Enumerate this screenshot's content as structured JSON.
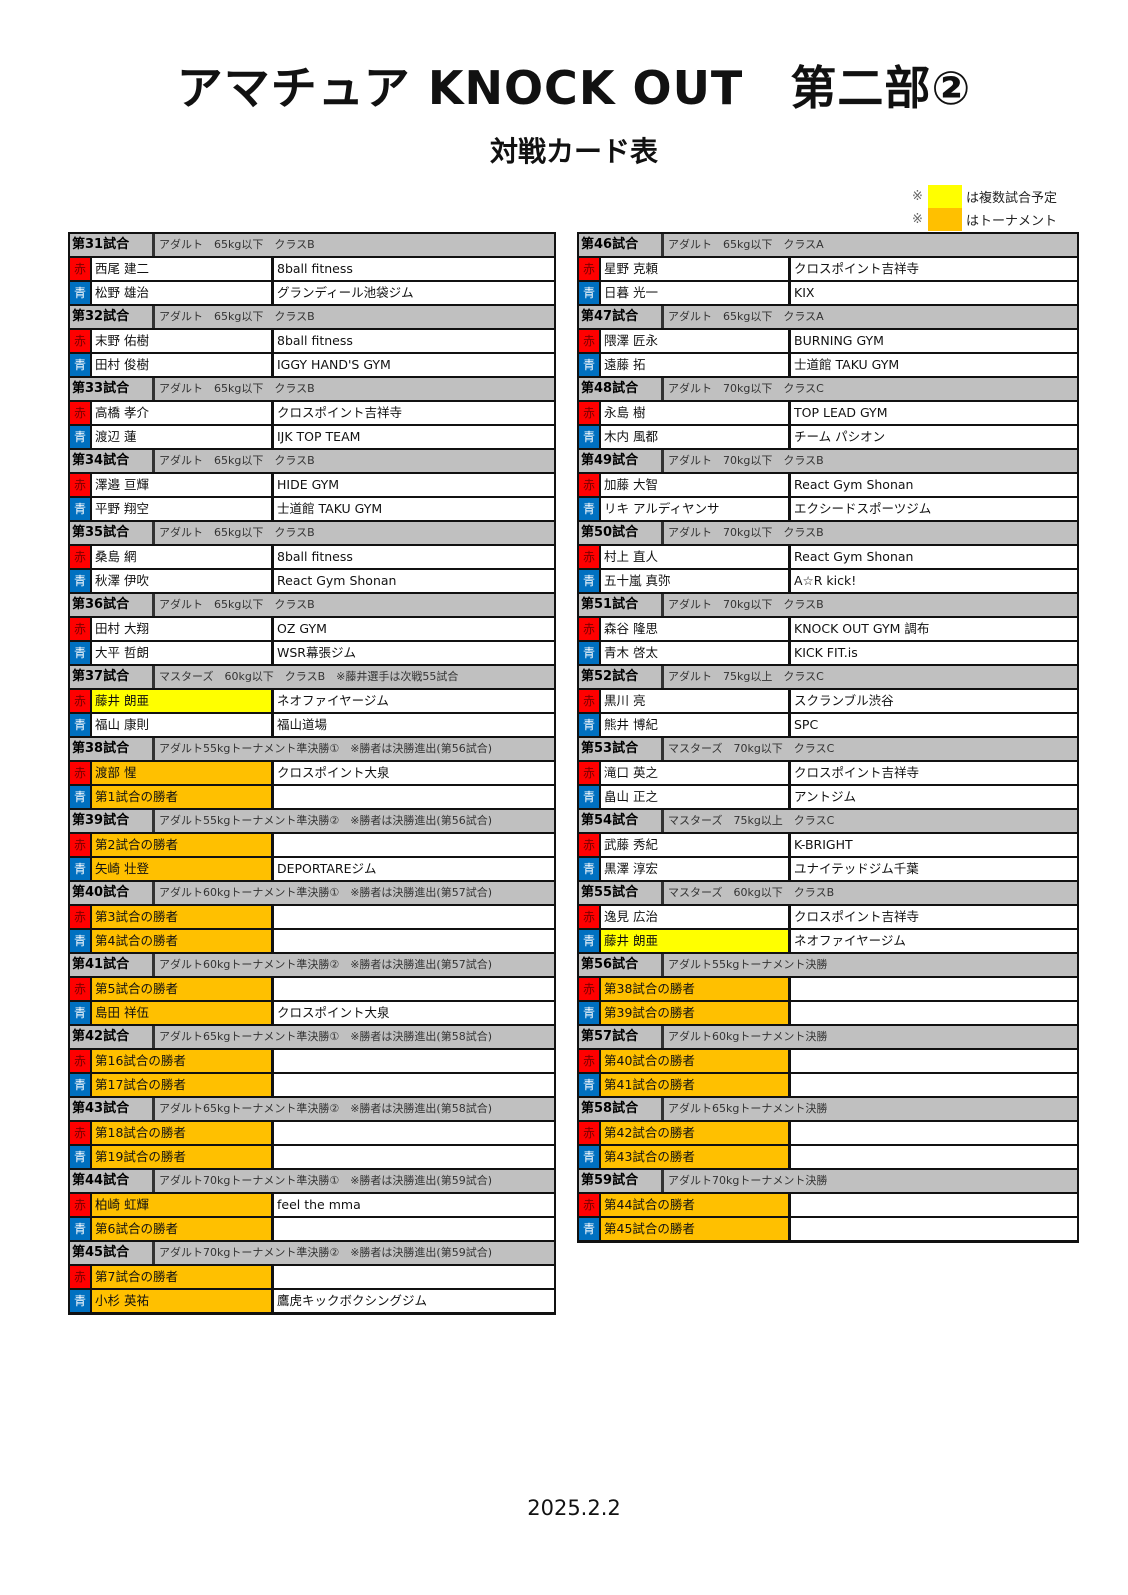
{
  "title": "アマチュア KNOCK OUT　第二部②",
  "subtitle": "対戦カード表",
  "legend": [
    {
      "mark": "※",
      "label": "は複数試合予定",
      "color": "#ffff00"
    },
    {
      "mark": "※",
      "label": "はトーナメント",
      "color": "#ffc000"
    }
  ],
  "corner_labels": {
    "red": "赤",
    "blue": "青"
  },
  "colors": {
    "red": "#ff0000",
    "blue": "#0070c0",
    "header": "#c0c0c0",
    "multi": "#ffff00",
    "tournament": "#ffc000"
  },
  "left_matches": [
    {
      "no": "第31試合",
      "desc": "アダルト　65kg以下　クラスB",
      "red": {
        "name": "西尾 建二",
        "gym": "8ball fitness"
      },
      "blue": {
        "name": "松野 雄治",
        "gym": "グランディール池袋ジム"
      }
    },
    {
      "no": "第32試合",
      "desc": "アダルト　65kg以下　クラスB",
      "red": {
        "name": "末野 佑樹",
        "gym": "8ball fitness"
      },
      "blue": {
        "name": "田村 俊樹",
        "gym": "IGGY HAND'S GYM"
      }
    },
    {
      "no": "第33試合",
      "desc": "アダルト　65kg以下　クラスB",
      "red": {
        "name": "高橋 孝介",
        "gym": "クロスポイント吉祥寺"
      },
      "blue": {
        "name": "渡辺 蓮",
        "gym": "IJK TOP TEAM"
      }
    },
    {
      "no": "第34試合",
      "desc": "アダルト　65kg以下　クラスB",
      "red": {
        "name": "澤邉 亘輝",
        "gym": "HIDE GYM"
      },
      "blue": {
        "name": "平野 翔空",
        "gym": "士道館 TAKU GYM"
      }
    },
    {
      "no": "第35試合",
      "desc": "アダルト　65kg以下　クラスB",
      "red": {
        "name": "桑島 網",
        "gym": "8ball fitness"
      },
      "blue": {
        "name": "秋澤 伊吹",
        "gym": "React Gym Shonan"
      }
    },
    {
      "no": "第36試合",
      "desc": "アダルト　65kg以下　クラスB",
      "red": {
        "name": "田村 大翔",
        "gym": "OZ GYM"
      },
      "blue": {
        "name": "大平 哲朗",
        "gym": "WSR幕張ジム"
      }
    },
    {
      "no": "第37試合",
      "desc": "マスターズ　60kg以下　クラスB　※藤井選手は次戦55試合",
      "red": {
        "name": "藤井 朗亜",
        "gym": "ネオファイヤージム",
        "hl": "yellow"
      },
      "blue": {
        "name": "福山 康則",
        "gym": "福山道場"
      }
    },
    {
      "no": "第38試合",
      "desc": "アダルト55kgトーナメント準決勝①　※勝者は決勝進出(第56試合)",
      "red": {
        "name": "渡部 惺",
        "gym": "クロスポイント大泉",
        "hl": "orange"
      },
      "blue": {
        "name": "第1試合の勝者",
        "gym": "",
        "hl": "orange"
      }
    },
    {
      "no": "第39試合",
      "desc": "アダルト55kgトーナメント準決勝②　※勝者は決勝進出(第56試合)",
      "red": {
        "name": "第2試合の勝者",
        "gym": "",
        "hl": "orange"
      },
      "blue": {
        "name": "矢崎 壮登",
        "gym": "DEPORTAREジム",
        "hl": "orange"
      }
    },
    {
      "no": "第40試合",
      "desc": "アダルト60kgトーナメント準決勝①　※勝者は決勝進出(第57試合)",
      "red": {
        "name": "第3試合の勝者",
        "gym": "",
        "hl": "orange"
      },
      "blue": {
        "name": "第4試合の勝者",
        "gym": "",
        "hl": "orange"
      }
    },
    {
      "no": "第41試合",
      "desc": "アダルト60kgトーナメント準決勝②　※勝者は決勝進出(第57試合)",
      "red": {
        "name": "第5試合の勝者",
        "gym": "",
        "hl": "orange"
      },
      "blue": {
        "name": "島田 祥伍",
        "gym": "クロスポイント大泉",
        "hl": "orange"
      }
    },
    {
      "no": "第42試合",
      "desc": "アダルト65kgトーナメント準決勝①　※勝者は決勝進出(第58試合)",
      "red": {
        "name": "第16試合の勝者",
        "gym": "",
        "hl": "orange"
      },
      "blue": {
        "name": "第17試合の勝者",
        "gym": "",
        "hl": "orange"
      }
    },
    {
      "no": "第43試合",
      "desc": "アダルト65kgトーナメント準決勝②　※勝者は決勝進出(第58試合)",
      "red": {
        "name": "第18試合の勝者",
        "gym": "",
        "hl": "orange"
      },
      "blue": {
        "name": "第19試合の勝者",
        "gym": "",
        "hl": "orange"
      }
    },
    {
      "no": "第44試合",
      "desc": "アダルト70kgトーナメント準決勝①　※勝者は決勝進出(第59試合)",
      "red": {
        "name": "柏崎 虹輝",
        "gym": "feel the mma",
        "hl": "orange"
      },
      "blue": {
        "name": "第6試合の勝者",
        "gym": "",
        "hl": "orange"
      }
    },
    {
      "no": "第45試合",
      "desc": "アダルト70kgトーナメント準決勝②　※勝者は決勝進出(第59試合)",
      "red": {
        "name": "第7試合の勝者",
        "gym": "",
        "hl": "orange"
      },
      "blue": {
        "name": "小杉 英祐",
        "gym": "鷹虎キックボクシングジム",
        "hl": "orange"
      }
    }
  ],
  "right_matches": [
    {
      "no": "第46試合",
      "desc": "アダルト　65kg以下　クラスA",
      "red": {
        "name": "星野 克頼",
        "gym": "クロスポイント吉祥寺"
      },
      "blue": {
        "name": "日暮 光一",
        "gym": "KIX"
      }
    },
    {
      "no": "第47試合",
      "desc": "アダルト　65kg以下　クラスA",
      "red": {
        "name": "隈澤 匠永",
        "gym": "BURNING GYM"
      },
      "blue": {
        "name": "遠藤 拓",
        "gym": "士道館 TAKU GYM"
      }
    },
    {
      "no": "第48試合",
      "desc": "アダルト　70kg以下　クラスC",
      "red": {
        "name": "永島 樹",
        "gym": "TOP LEAD GYM"
      },
      "blue": {
        "name": "木内 風都",
        "gym": "チーム パシオン"
      }
    },
    {
      "no": "第49試合",
      "desc": "アダルト　70kg以下　クラスB",
      "red": {
        "name": "加藤 大智",
        "gym": "React Gym Shonan"
      },
      "blue": {
        "name": "リキ アルディヤンサ",
        "gym": "エクシードスポーツジム"
      }
    },
    {
      "no": "第50試合",
      "desc": "アダルト　70kg以下　クラスB",
      "red": {
        "name": "村上 直人",
        "gym": "React Gym Shonan"
      },
      "blue": {
        "name": "五十嵐 真弥",
        "gym": "A☆R kick!"
      }
    },
    {
      "no": "第51試合",
      "desc": "アダルト　70kg以下　クラスB",
      "red": {
        "name": "森谷 隆思",
        "gym": "KNOCK OUT GYM 調布"
      },
      "blue": {
        "name": "青木 啓太",
        "gym": "KICK FIT.is"
      }
    },
    {
      "no": "第52試合",
      "desc": "アダルト　75kg以上　クラスC",
      "red": {
        "name": "黒川 亮",
        "gym": "スクランブル渋谷"
      },
      "blue": {
        "name": "熊井 博紀",
        "gym": "SPC"
      }
    },
    {
      "no": "第53試合",
      "desc": "マスターズ　70kg以下　クラスC",
      "red": {
        "name": "滝口 英之",
        "gym": "クロスポイント吉祥寺"
      },
      "blue": {
        "name": "畠山 正之",
        "gym": "アントジム"
      }
    },
    {
      "no": "第54試合",
      "desc": "マスターズ　75kg以上　クラスC",
      "red": {
        "name": "武藤 秀紀",
        "gym": "K-BRIGHT"
      },
      "blue": {
        "name": "黒澤 淳宏",
        "gym": "ユナイテッドジム千葉"
      }
    },
    {
      "no": "第55試合",
      "desc": "マスターズ　60kg以下　クラスB",
      "red": {
        "name": "逸見 広治",
        "gym": "クロスポイント吉祥寺"
      },
      "blue": {
        "name": "藤井 朗亜",
        "gym": "ネオファイヤージム",
        "hl": "yellow"
      }
    },
    {
      "no": "第56試合",
      "desc": "アダルト55kgトーナメント決勝",
      "red": {
        "name": "第38試合の勝者",
        "gym": "",
        "hl": "orange"
      },
      "blue": {
        "name": "第39試合の勝者",
        "gym": "",
        "hl": "orange"
      }
    },
    {
      "no": "第57試合",
      "desc": "アダルト60kgトーナメント決勝",
      "red": {
        "name": "第40試合の勝者",
        "gym": "",
        "hl": "orange"
      },
      "blue": {
        "name": "第41試合の勝者",
        "gym": "",
        "hl": "orange"
      }
    },
    {
      "no": "第58試合",
      "desc": "アダルト65kgトーナメント決勝",
      "red": {
        "name": "第42試合の勝者",
        "gym": "",
        "hl": "orange"
      },
      "blue": {
        "name": "第43試合の勝者",
        "gym": "",
        "hl": "orange"
      }
    },
    {
      "no": "第59試合",
      "desc": "アダルト70kgトーナメント決勝",
      "red": {
        "name": "第44試合の勝者",
        "gym": "",
        "hl": "orange"
      },
      "blue": {
        "name": "第45試合の勝者",
        "gym": "",
        "hl": "orange"
      }
    }
  ],
  "date": "2025.2.2"
}
